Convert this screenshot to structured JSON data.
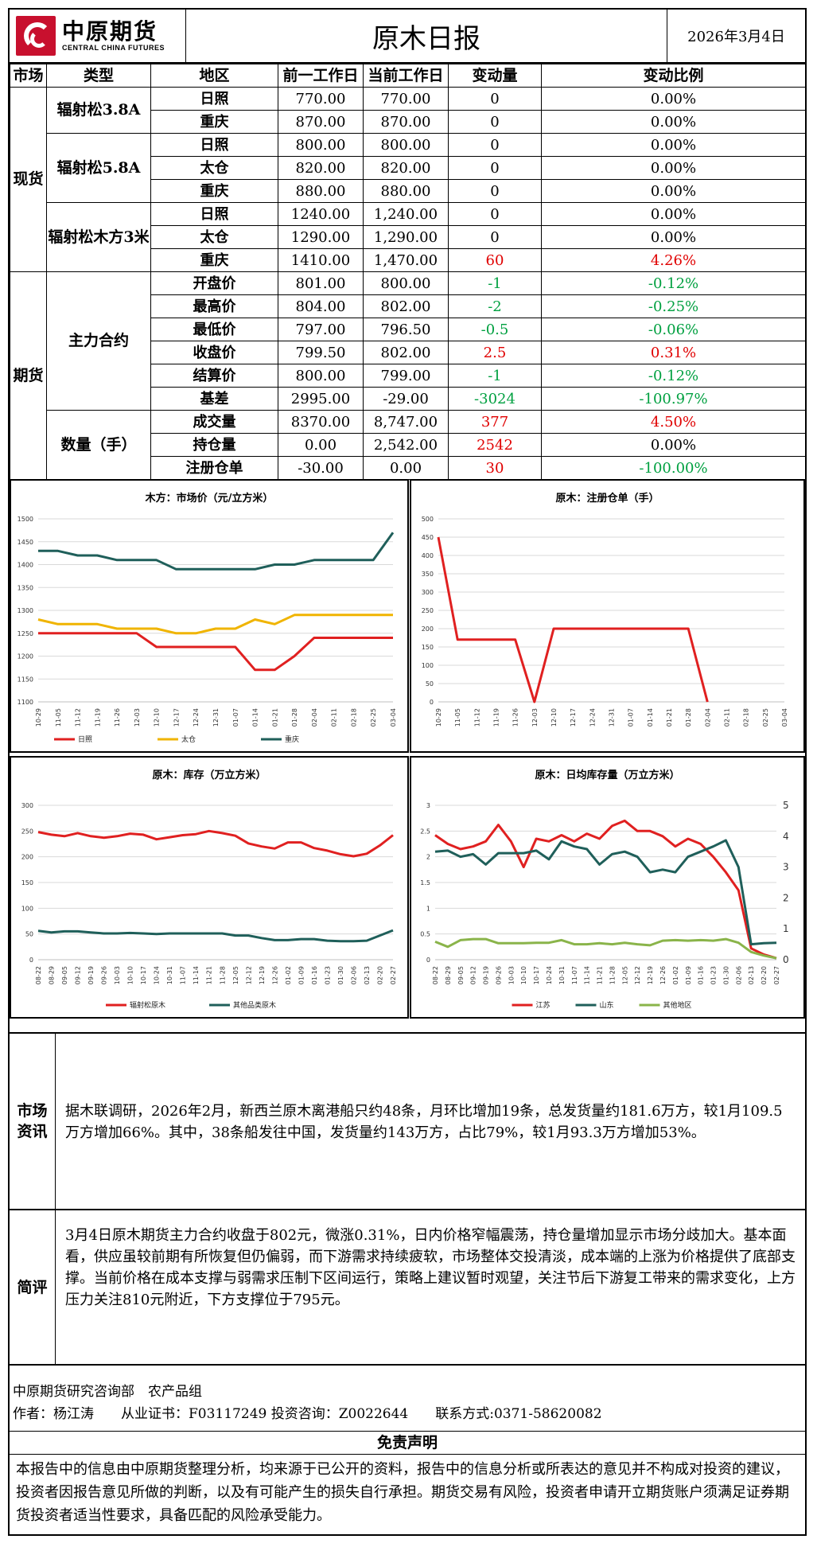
{
  "header": {
    "logo_cn": "中原期货",
    "logo_en": "CENTRAL CHINA FUTURES",
    "title": "原木日报",
    "date": "2026年3月4日"
  },
  "table": {
    "headers": [
      "市场",
      "类型",
      "地区",
      "前一工作日",
      "当前工作日",
      "变动量",
      "变动比例"
    ],
    "markets": [
      "现货",
      "期货"
    ],
    "types": [
      "辐射松3.8A",
      "辐射松5.8A",
      "辐射松木方3米",
      "主力合约",
      "数量（手）"
    ],
    "rows": [
      {
        "region": "日照",
        "prev": "770.00",
        "cur": "770.00",
        "chg": "0",
        "pct": "0.00%",
        "tone": ""
      },
      {
        "region": "重庆",
        "prev": "870.00",
        "cur": "870.00",
        "chg": "0",
        "pct": "0.00%",
        "tone": ""
      },
      {
        "region": "日照",
        "prev": "800.00",
        "cur": "800.00",
        "chg": "0",
        "pct": "0.00%",
        "tone": ""
      },
      {
        "region": "太仓",
        "prev": "820.00",
        "cur": "820.00",
        "chg": "0",
        "pct": "0.00%",
        "tone": ""
      },
      {
        "region": "重庆",
        "prev": "880.00",
        "cur": "880.00",
        "chg": "0",
        "pct": "0.00%",
        "tone": ""
      },
      {
        "region": "日照",
        "prev": "1240.00",
        "cur": "1,240.00",
        "chg": "0",
        "pct": "0.00%",
        "tone": ""
      },
      {
        "region": "太仓",
        "prev": "1290.00",
        "cur": "1,290.00",
        "chg": "0",
        "pct": "0.00%",
        "tone": ""
      },
      {
        "region": "重庆",
        "prev": "1410.00",
        "cur": "1,470.00",
        "chg": "60",
        "pct": "4.26%",
        "tone": "red"
      },
      {
        "region": "开盘价",
        "prev": "801.00",
        "cur": "800.00",
        "chg": "-1",
        "pct": "-0.12%",
        "tone": "green"
      },
      {
        "region": "最高价",
        "prev": "804.00",
        "cur": "802.00",
        "chg": "-2",
        "pct": "-0.25%",
        "tone": "green"
      },
      {
        "region": "最低价",
        "prev": "797.00",
        "cur": "796.50",
        "chg": "-0.5",
        "pct": "-0.06%",
        "tone": "green"
      },
      {
        "region": "收盘价",
        "prev": "799.50",
        "cur": "802.00",
        "chg": "2.5",
        "pct": "0.31%",
        "tone": "red"
      },
      {
        "region": "结算价",
        "prev": "800.00",
        "cur": "799.00",
        "chg": "-1",
        "pct": "-0.12%",
        "tone": "green"
      },
      {
        "region": "基差",
        "prev": "2995.00",
        "cur": "-29.00",
        "chg": "-3024",
        "pct": "-100.97%",
        "tone": "green"
      },
      {
        "region": "成交量",
        "prev": "8370.00",
        "cur": "8,747.00",
        "chg": "377",
        "pct": "4.50%",
        "tone": "red"
      },
      {
        "region": "持仓量",
        "prev": "0.00",
        "cur": "2,542.00",
        "chg": "2542",
        "pct": "0.00%",
        "tone": "redchg"
      },
      {
        "region": "注册仓单",
        "prev": "-30.00",
        "cur": "0.00",
        "chg": "30",
        "pct": "-100.00%",
        "tone": "mixed"
      }
    ]
  },
  "colors": {
    "red": "#e02020",
    "yellow": "#f0b400",
    "teal": "#1f5f5a",
    "green": "#8ab44a"
  },
  "chart_data": [
    {
      "type": "line",
      "title": "木方：市场价（元/立方米）",
      "x": [
        "10-29",
        "11-05",
        "11-12",
        "11-19",
        "11-26",
        "12-03",
        "12-10",
        "12-17",
        "12-24",
        "12-31",
        "01-07",
        "01-14",
        "01-21",
        "01-28",
        "02-04",
        "02-11",
        "02-18",
        "02-25",
        "03-04"
      ],
      "ylim": [
        1100,
        1500
      ],
      "yticks": [
        "1100",
        "1150",
        "1200",
        "1250",
        "1300",
        "1350",
        "1400",
        "1450",
        "1500"
      ],
      "series": [
        {
          "name": "日照",
          "color": "#e02020",
          "values": [
            1250,
            1250,
            1250,
            1250,
            1250,
            1250,
            1220,
            1220,
            1220,
            1220,
            1220,
            1170,
            1170,
            1200,
            1240,
            1240,
            1240,
            1240,
            1240
          ]
        },
        {
          "name": "太仓",
          "color": "#f0b400",
          "values": [
            1280,
            1270,
            1270,
            1270,
            1260,
            1260,
            1260,
            1250,
            1250,
            1260,
            1260,
            1280,
            1270,
            1290,
            1290,
            1290,
            1290,
            1290,
            1290
          ]
        },
        {
          "name": "重庆",
          "color": "#1f5f5a",
          "values": [
            1430,
            1430,
            1420,
            1420,
            1410,
            1410,
            1410,
            1390,
            1390,
            1390,
            1390,
            1390,
            1400,
            1400,
            1410,
            1410,
            1410,
            1410,
            1470
          ]
        }
      ]
    },
    {
      "type": "line",
      "title": "原木：注册仓单（手）",
      "x": [
        "10-29",
        "11-05",
        "11-12",
        "11-19",
        "11-26",
        "12-03",
        "12-10",
        "12-17",
        "12-24",
        "12-31",
        "01-07",
        "01-14",
        "01-21",
        "01-28",
        "02-04",
        "02-11",
        "02-18",
        "02-25",
        "03-04"
      ],
      "ylim": [
        0,
        500
      ],
      "yticks": [
        "0",
        "50",
        "100",
        "150",
        "200",
        "250",
        "300",
        "350",
        "400",
        "450",
        "500"
      ],
      "series": [
        {
          "name": "",
          "color": "#e02020",
          "values": [
            450,
            170,
            170,
            170,
            170,
            0,
            200,
            200,
            200,
            200,
            200,
            200,
            200,
            200,
            0,
            null,
            null,
            null,
            null
          ]
        }
      ]
    },
    {
      "type": "line",
      "title": "原木：库存（万立方米）",
      "x": [
        "08-22",
        "08-29",
        "09-05",
        "09-12",
        "09-19",
        "09-26",
        "10-03",
        "10-10",
        "10-17",
        "10-24",
        "10-31",
        "11-07",
        "11-14",
        "11-21",
        "11-28",
        "12-05",
        "12-12",
        "12-19",
        "12-26",
        "01-02",
        "01-09",
        "01-16",
        "01-23",
        "01-30",
        "02-06",
        "02-13",
        "02-20",
        "02-27"
      ],
      "ylim": [
        0,
        300
      ],
      "yticks": [
        "0",
        "50",
        "100",
        "150",
        "200",
        "250",
        "300"
      ],
      "series": [
        {
          "name": "辐射松原木",
          "color": "#e02020",
          "values": [
            248,
            243,
            240,
            246,
            240,
            237,
            240,
            245,
            243,
            234,
            238,
            242,
            244,
            250,
            246,
            241,
            226,
            220,
            216,
            228,
            228,
            217,
            212,
            205,
            201,
            206,
            222,
            242
          ]
        },
        {
          "name": "其他品类原木",
          "color": "#1f5f5a",
          "values": [
            56,
            53,
            55,
            55,
            53,
            51,
            51,
            52,
            51,
            50,
            51,
            51,
            51,
            51,
            51,
            47,
            47,
            42,
            38,
            38,
            40,
            40,
            37,
            36,
            36,
            37,
            47,
            57
          ]
        }
      ]
    },
    {
      "type": "line",
      "title": "原木：日均库存量（万立方米）",
      "x": [
        "08-22",
        "08-29",
        "09-05",
        "09-12",
        "09-19",
        "09-26",
        "10-03",
        "10-10",
        "10-17",
        "10-24",
        "10-31",
        "11-07",
        "11-14",
        "11-21",
        "11-28",
        "12-05",
        "12-12",
        "12-19",
        "12-26",
        "01-02",
        "01-09",
        "01-16",
        "01-23",
        "01-30",
        "02-06",
        "02-13",
        "02-20",
        "02-27"
      ],
      "ylim": [
        0,
        3
      ],
      "y2lim": [
        0,
        5
      ],
      "yticks": [
        "0",
        "0.5",
        "1",
        "1.5",
        "2",
        "2.5",
        "3"
      ],
      "y2ticks": [
        "0",
        "1",
        "2",
        "3",
        "4",
        "5"
      ],
      "series": [
        {
          "name": "江苏",
          "color": "#e02020",
          "values": [
            2.42,
            2.25,
            2.15,
            2.2,
            2.3,
            2.62,
            2.3,
            1.8,
            2.35,
            2.3,
            2.42,
            2.3,
            2.45,
            2.35,
            2.6,
            2.7,
            2.5,
            2.5,
            2.4,
            2.2,
            2.35,
            2.25,
            2.0,
            1.7,
            1.35,
            0.22,
            0.1,
            0.03
          ]
        },
        {
          "name": "山东",
          "color": "#1f5f5a",
          "values": [
            2.1,
            2.12,
            2.0,
            2.05,
            1.85,
            2.07,
            2.07,
            2.07,
            2.12,
            1.95,
            2.3,
            2.2,
            2.15,
            1.85,
            2.05,
            2.1,
            2.0,
            1.7,
            1.75,
            1.7,
            2.0,
            2.1,
            2.2,
            2.32,
            1.8,
            0.3,
            0.32,
            0.33
          ]
        },
        {
          "name": "其他地区",
          "color": "#8ab44a",
          "values": [
            0.35,
            0.25,
            0.38,
            0.4,
            0.4,
            0.32,
            0.32,
            0.32,
            0.33,
            0.33,
            0.38,
            0.3,
            0.3,
            0.32,
            0.3,
            0.33,
            0.3,
            0.28,
            0.37,
            0.38,
            0.37,
            0.38,
            0.37,
            0.4,
            0.33,
            0.15,
            0.08,
            0.03
          ]
        }
      ]
    }
  ],
  "market_info": {
    "label": "市场资讯",
    "text": "据木联调研，2026年2月，新西兰原木离港船只约48条，月环比增加19条，总发货量约181.6万方，较1月109.5万方增加66%。其中，38条船发往中国，发货量约143万方，占比79%，较1月93.3万方增加53%。"
  },
  "comment": {
    "label": "简评",
    "text": "3月4日原木期货主力合约收盘于802元，微涨0.31%，日内价格窄幅震荡，持仓量增加显示市场分歧加大。基本面看，供应虽较前期有所恢复但仍偏弱，而下游需求持续疲软，市场整体交投清淡，成本端的上涨为价格提供了底部支撑。当前价格在成本支撑与弱需求压制下区间运行，策略上建议暂时观望，关注节后下游复工带来的需求变化，上方压力关注810元附近，下方支撑位于795元。"
  },
  "footer": {
    "dept": "中原期货研究咨询部　农产品组",
    "author": "作者：杨江涛　　从业证书：F03117249 投资咨询：Z0022644　　联系方式:0371-58620082",
    "disclaimer_title": "免责声明",
    "disclaimer": "本报告中的信息由中原期货整理分析，均来源于已公开的资料，报告中的信息分析或所表达的意见并不构成对投资的建议，投资者因报告意见所做的判断，以及有可能产生的损失自行承担。期货交易有风险，投资者申请开立期货账户须满足证券期货投资者适当性要求，具备匹配的风险承受能力。"
  }
}
